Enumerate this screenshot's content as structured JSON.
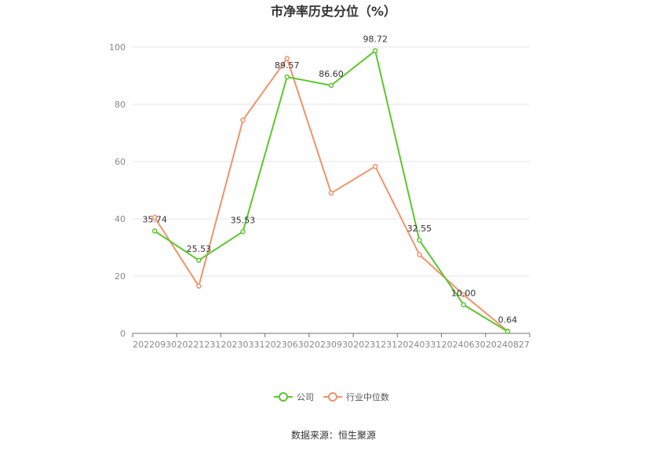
{
  "chart_data": {
    "type": "line",
    "title": "市净率历史分位（%）",
    "categories": [
      "20220930",
      "20221231",
      "20230331",
      "20230630",
      "20230930",
      "20231231",
      "20240331",
      "20240630",
      "20240827"
    ],
    "ylim": [
      0,
      100
    ],
    "yticks": [
      0,
      20,
      40,
      60,
      80,
      100
    ],
    "grid": true,
    "legend_position": "bottom",
    "series": [
      {
        "name": "公司",
        "color": "#5cc72d",
        "values": [
          35.74,
          25.53,
          35.53,
          89.57,
          86.6,
          98.72,
          32.55,
          10.0,
          0.64
        ],
        "labels": [
          "35.74",
          "25.53",
          "35.53",
          "89.57",
          "86.60",
          "98.72",
          "32.55",
          "10.00",
          "0.64"
        ]
      },
      {
        "name": "行业中位数",
        "color": "#f0936a",
        "values": [
          40.5,
          16.5,
          74.5,
          96.0,
          49.0,
          58.3,
          27.5,
          13.5,
          0.8
        ]
      }
    ]
  },
  "source": "数据来源：恒生聚源"
}
